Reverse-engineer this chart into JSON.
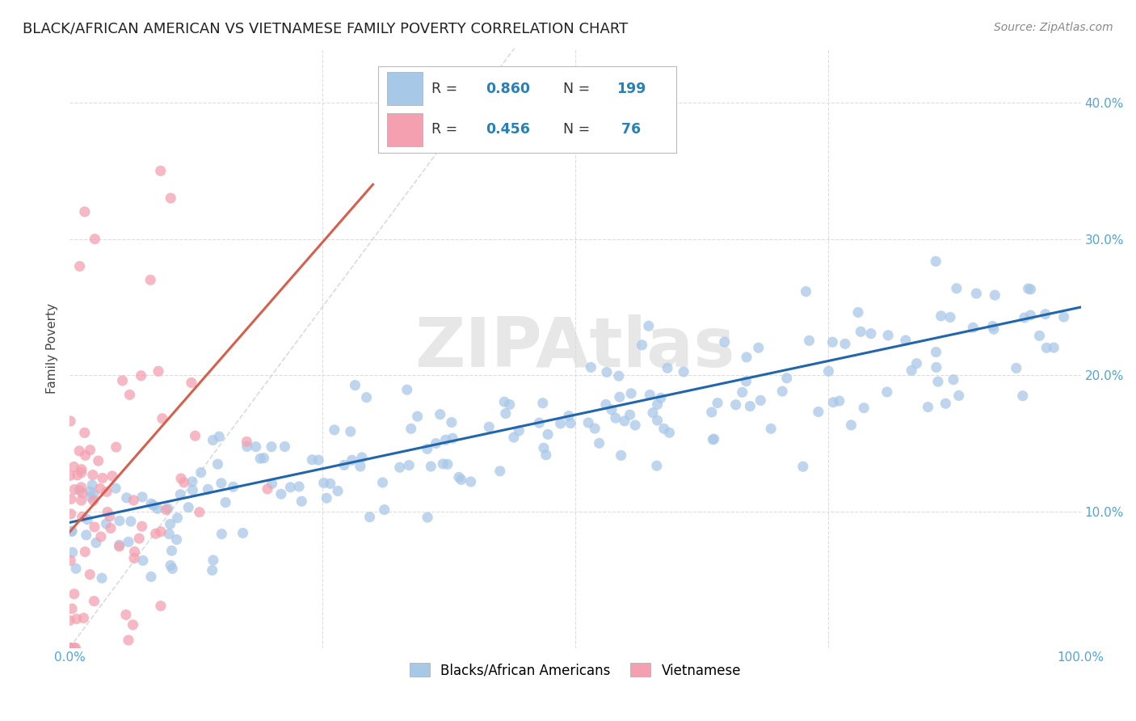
{
  "title": "BLACK/AFRICAN AMERICAN VS VIETNAMESE FAMILY POVERTY CORRELATION CHART",
  "source": "Source: ZipAtlas.com",
  "ylabel": "Family Poverty",
  "legend_bottom": [
    "Blacks/African Americans",
    "Vietnamese"
  ],
  "blue_R": "0.860",
  "blue_N": "199",
  "pink_R": "0.456",
  "pink_N": "76",
  "blue_color": "#a8c8e8",
  "pink_color": "#f4a0b0",
  "blue_line_color": "#2166ac",
  "pink_line_color": "#d6604d",
  "diagonal_color": "#cccccc",
  "background_color": "#ffffff",
  "grid_color": "#dddddd",
  "title_fontsize": 13,
  "axis_label_fontsize": 11,
  "tick_fontsize": 11,
  "source_fontsize": 10,
  "watermark_color": "#d8d8d8",
  "xlim": [
    0,
    1
  ],
  "ylim": [
    0.0,
    0.44
  ],
  "yticks": [
    0.1,
    0.2,
    0.3,
    0.4
  ],
  "ytick_labels": [
    "10.0%",
    "20.0%",
    "30.0%",
    "40.0%"
  ],
  "xticks": [
    0.0,
    0.25,
    0.5,
    0.75,
    1.0
  ],
  "xtick_labels": [
    "0.0%",
    "",
    "",
    "",
    "100.0%"
  ]
}
